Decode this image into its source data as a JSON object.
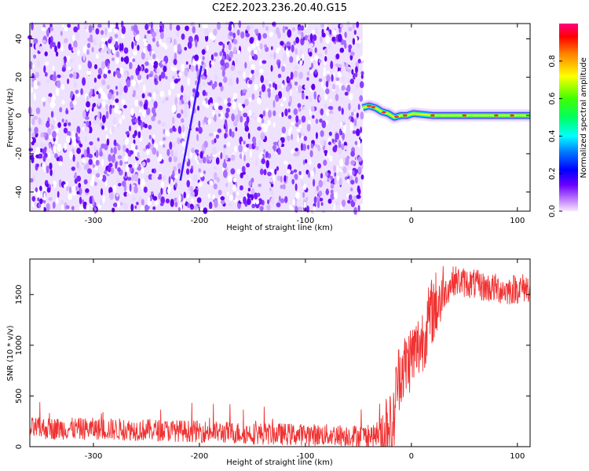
{
  "title": "C2E2.2023.236.20.40.G15",
  "chart_data": [
    {
      "type": "heatmap",
      "xlabel": "Height of straight line (km)",
      "ylabel": "Frequency (Hz)",
      "xlim": [
        -360,
        112
      ],
      "ylim": [
        -50,
        48
      ],
      "xticks": [
        -300,
        -200,
        -100,
        0,
        100
      ],
      "yticks": [
        -40,
        -20,
        0,
        20,
        40
      ],
      "noise_region_x": [
        -360,
        -46
      ],
      "signal_track": {
        "x": [
          -46,
          -40,
          -34,
          -28,
          -22,
          -16,
          -10,
          -4,
          2,
          20,
          50,
          80,
          112
        ],
        "y": [
          4,
          5,
          4,
          2,
          1,
          -1,
          0,
          0,
          1,
          0,
          0,
          0,
          0
        ]
      },
      "streak": {
        "x": [
          -218,
          -198
        ],
        "y": [
          -34,
          26
        ]
      },
      "colorbar": {
        "label": "Normalized spectral amplitude",
        "range": [
          0,
          1
        ],
        "ticks": [
          0.0,
          0.2,
          0.4,
          0.6,
          0.8
        ]
      }
    },
    {
      "type": "line",
      "xlabel": "Height of straight line (km)",
      "ylabel": "SNR (10 * v/v)",
      "xlim": [
        -360,
        112
      ],
      "ylim": [
        0,
        1850
      ],
      "xticks": [
        -300,
        -200,
        -100,
        0,
        100
      ],
      "yticks": [
        0,
        500,
        1000,
        1500
      ],
      "color": "#f03232",
      "profile": {
        "x": [
          -360,
          -300,
          -250,
          -200,
          -150,
          -100,
          -50,
          -30,
          -26,
          -22,
          -18,
          -14,
          -10,
          -5,
          0,
          5,
          10,
          20,
          30,
          40,
          50,
          60,
          70,
          80,
          90,
          100,
          112
        ],
        "y": [
          180,
          175,
          165,
          150,
          130,
          118,
          110,
          105,
          130,
          300,
          80,
          600,
          760,
          800,
          900,
          950,
          1050,
          1350,
          1500,
          1640,
          1620,
          1600,
          1570,
          1560,
          1540,
          1560,
          1570
        ]
      }
    }
  ]
}
